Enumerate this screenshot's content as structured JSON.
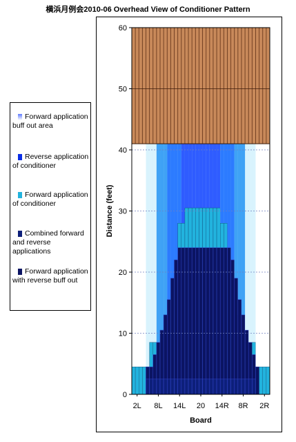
{
  "chart_data": {
    "type": "heatmap",
    "title": "横浜月例会2010-06 Overhead View of Conditioner Pattern",
    "xlabel": "Board",
    "ylabel": "Distance (feet)",
    "ylim": [
      0,
      60
    ],
    "y_ticks": [
      "0",
      "10",
      "20",
      "30",
      "40",
      "50",
      "60"
    ],
    "x_tick_labels": [
      "2L",
      "8L",
      "14L",
      "20",
      "14R",
      "8R",
      "2R"
    ],
    "boards": [
      "1L",
      "2L",
      "3L",
      "4L",
      "5L",
      "6L",
      "7L",
      "8L",
      "9L",
      "10L",
      "11L",
      "12L",
      "13L",
      "14L",
      "15L",
      "16L",
      "17L",
      "18L",
      "19L",
      "20",
      "19R",
      "18R",
      "17R",
      "16R",
      "15R",
      "14R",
      "13R",
      "12R",
      "11R",
      "10R",
      "9R",
      "8R",
      "7R",
      "6R",
      "5R",
      "4R",
      "3R",
      "2R",
      "1R"
    ],
    "pattern_length_ft": 41,
    "lane_length_ft": 60,
    "legend": [
      {
        "label": "Forward application buff out area",
        "color": "#9fb4ff"
      },
      {
        "label": "Reverse application of conditioner",
        "color": "#0a2ee6"
      },
      {
        "label": "Forward application of conditioner",
        "color": "#22b3de"
      },
      {
        "label": "Combined forward and reverse applications",
        "color": "#0d1f7a"
      },
      {
        "label": "Forward application with reverse buff out",
        "color": "#0b1463"
      }
    ],
    "combined_end_ft_by_board": [
      0,
      0,
      0,
      0,
      2.5,
      2.5,
      2.5,
      2.5,
      2.5,
      2.5,
      2.5,
      2.5,
      2.5,
      2.5,
      2.5,
      2.5,
      2.5,
      2.5,
      2.5,
      2.5,
      2.5,
      2.5,
      2.5,
      2.5,
      2.5,
      2.5,
      2.5,
      2.5,
      2.5,
      2.5,
      2.5,
      2.5,
      2.5,
      2.5,
      2.5,
      0,
      0,
      0,
      0
    ],
    "reverse_buff_end_ft_by_board": [
      0,
      0,
      0,
      0,
      4.5,
      4.5,
      6.5,
      8.5,
      10.5,
      13,
      15.5,
      19,
      22,
      24,
      24,
      24,
      24,
      24,
      24,
      24,
      24,
      24,
      24,
      24,
      24,
      24,
      24,
      24,
      22,
      19,
      15.5,
      13,
      10.5,
      8.5,
      6.5,
      4.5,
      0,
      0,
      0
    ],
    "forward_end_ft_by_board": [
      4.5,
      4.5,
      4.5,
      4.5,
      4.5,
      8.5,
      8.5,
      8.5,
      10.5,
      13,
      15.5,
      19,
      22,
      28,
      28,
      30.5,
      30.5,
      30.5,
      30.5,
      30.5,
      30.5,
      30.5,
      30.5,
      30.5,
      30.5,
      28,
      28,
      22,
      19,
      15.5,
      13,
      10.5,
      8.5,
      8.5,
      8.5,
      4.5,
      4.5,
      4.5,
      4.5
    ],
    "reverse_start_ft_by_board": [
      41,
      41,
      41,
      41,
      41,
      41,
      41,
      41,
      41,
      41,
      41,
      41,
      41,
      41,
      41,
      41,
      41,
      41,
      41,
      41,
      41,
      41,
      41,
      41,
      41,
      41,
      41,
      41,
      41,
      41,
      41,
      41,
      41,
      41,
      41,
      41,
      41,
      41,
      41
    ]
  },
  "colors": {
    "oil_brown": "#c8895a",
    "oil_lines": "#6b3a1e",
    "buff_light": "#e6f6ff",
    "forward_cyan": "#22b3de",
    "reverse_blue": "#1a3df0",
    "combined_navy": "#0d1f7a",
    "buff_navy": "#0b1463"
  }
}
